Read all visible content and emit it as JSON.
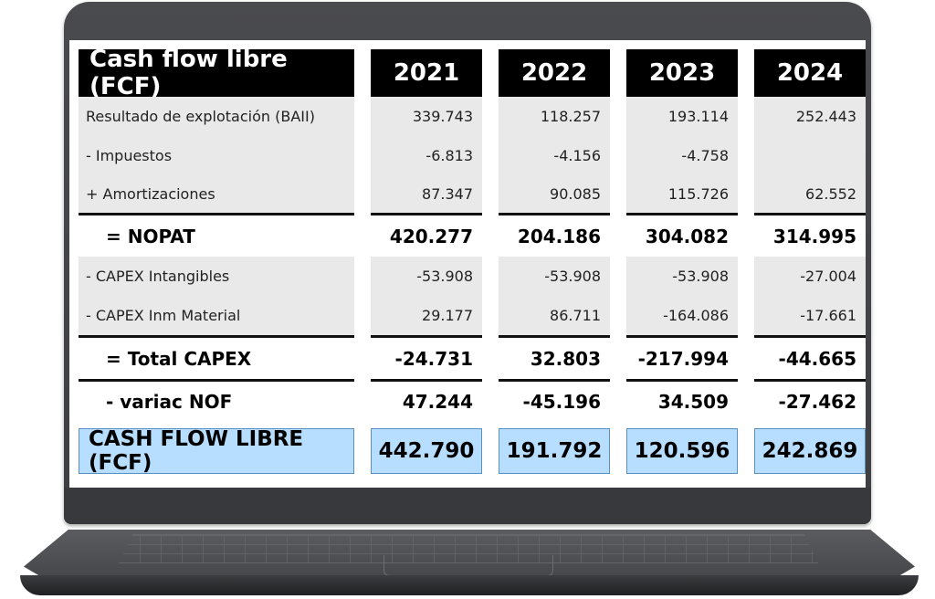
{
  "table": {
    "title": "Cash flow libre (FCF)",
    "years": [
      "2021",
      "2022",
      "2023",
      "2024"
    ],
    "rows": [
      {
        "label": "Resultado de explotación (BAII)",
        "values": [
          "339.743",
          "118.257",
          "193.114",
          "252.443"
        ]
      },
      {
        "label": "- Impuestos",
        "values": [
          "-6.813",
          "-4.156",
          "-4.758",
          ""
        ]
      },
      {
        "label": "+ Amortizaciones",
        "values": [
          "87.347",
          "90.085",
          "115.726",
          "62.552"
        ]
      },
      {
        "label": "= NOPAT",
        "values": [
          "420.277",
          "204.186",
          "304.082",
          "314.995"
        ]
      },
      {
        "label": "- CAPEX Intangibles",
        "values": [
          "-53.908",
          "-53.908",
          "-53.908",
          "-27.004"
        ]
      },
      {
        "label": "- CAPEX Inm Material",
        "values": [
          "29.177",
          "86.711",
          "-164.086",
          "-17.661"
        ]
      },
      {
        "label": "= Total CAPEX",
        "values": [
          "-24.731",
          "32.803",
          "-217.994",
          "-44.665"
        ]
      },
      {
        "label": "- variac NOF",
        "values": [
          "47.244",
          "-45.196",
          "34.509",
          "-27.462"
        ]
      },
      {
        "label": "CASH FLOW LIBRE (FCF)",
        "values": [
          "442.790",
          "191.792",
          "120.596",
          "242.869"
        ]
      }
    ]
  },
  "colors": {
    "header_bg": "#000000",
    "row_shade": "#e9e9e9",
    "total_highlight": "#b7ddff"
  }
}
